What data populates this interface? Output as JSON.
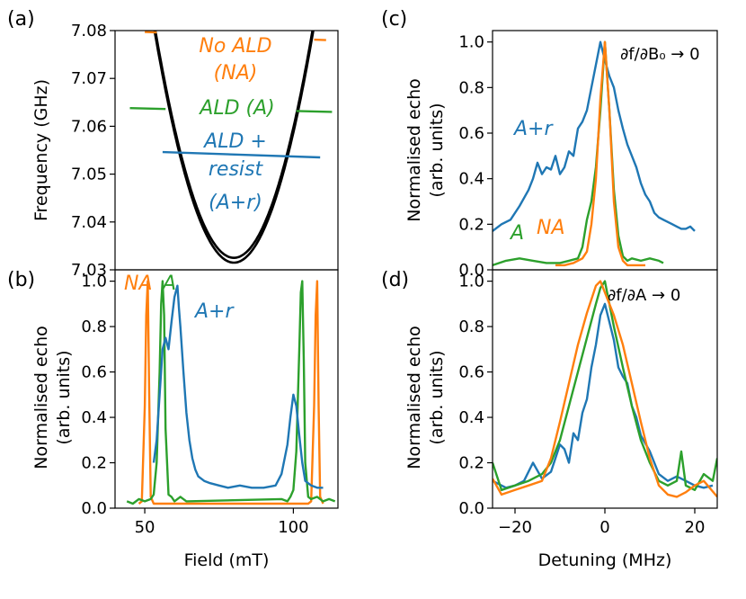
{
  "colors": {
    "NA": "#ff7f0e",
    "A": "#2ca02c",
    "Ar": "#1f77b4",
    "parabola": "#000000"
  },
  "chart_data": [
    {
      "panel": "(a)",
      "type": "line",
      "ylabel": "Frequency (GHz)",
      "xlim": [
        40,
        115
      ],
      "ylim": [
        7.03,
        7.08
      ],
      "yticks": [
        "7.03",
        "7.04",
        "7.05",
        "7.06",
        "7.07",
        "7.08"
      ],
      "parabola": {
        "vertex_x": 80,
        "vertex_y": [
          7.0315,
          7.0325
        ],
        "curvature": 6.8e-05
      },
      "series": [
        {
          "name": "No ALD (NA)",
          "key": "NA",
          "segments": [
            {
              "x": [
                50,
                54
              ],
              "y": [
                7.0797,
                7.0796
              ]
            },
            {
              "x": [
                107,
                111
              ],
              "y": [
                7.0781,
                7.078
              ]
            }
          ]
        },
        {
          "name": "ALD (A)",
          "key": "A",
          "segments": [
            {
              "x": [
                45,
                57
              ],
              "y": [
                7.0638,
                7.0636
              ]
            },
            {
              "x": [
                101,
                113
              ],
              "y": [
                7.0632,
                7.063
              ]
            }
          ]
        },
        {
          "name": "ALD + resist (A+r)",
          "key": "Ar",
          "segments": [
            {
              "x": [
                56,
                109
              ],
              "y": [
                7.0546,
                7.0535
              ]
            }
          ]
        }
      ],
      "annotations": {
        "NA_line1": "No ALD",
        "NA_line2": "(NA)",
        "A": "ALD (A)",
        "Ar_line1": "ALD +",
        "Ar_line2": "resist",
        "Ar_line3": "(A+r)"
      }
    },
    {
      "panel": "(b)",
      "type": "line",
      "xlabel": "Field (mT)",
      "ylabel_line1": "Normalised echo",
      "ylabel_line2": "(arb. units)",
      "xlim": [
        40,
        115
      ],
      "ylim": [
        0,
        1.05
      ],
      "xticks": [
        "50",
        "100"
      ],
      "yticks": [
        "0.0",
        "0.2",
        "0.4",
        "0.6",
        "0.8",
        "1.0"
      ],
      "series": [
        {
          "name": "NA",
          "key": "NA",
          "x": [
            48,
            49,
            50,
            50.5,
            51,
            51.5,
            52,
            53,
            105,
            106,
            107,
            107.5,
            108,
            108.5,
            109,
            110
          ],
          "y": [
            0.02,
            0.03,
            0.45,
            0.85,
            1.0,
            0.5,
            0.05,
            0.02,
            0.02,
            0.03,
            0.45,
            0.85,
            1.0,
            0.45,
            0.05,
            0.02
          ]
        },
        {
          "name": "A",
          "key": "A",
          "x": [
            44,
            46,
            48,
            50,
            52,
            53,
            54,
            55,
            55.5,
            56,
            56.5,
            57,
            58,
            59,
            60,
            61,
            62,
            64,
            96,
            98,
            99,
            100,
            101,
            102,
            102.5,
            103,
            103.5,
            104,
            105,
            106,
            108,
            110,
            112,
            114
          ],
          "y": [
            0.03,
            0.02,
            0.04,
            0.03,
            0.04,
            0.06,
            0.2,
            0.6,
            0.9,
            1.0,
            0.85,
            0.35,
            0.06,
            0.05,
            0.03,
            0.04,
            0.05,
            0.03,
            0.04,
            0.03,
            0.05,
            0.08,
            0.25,
            0.7,
            0.95,
            1.0,
            0.65,
            0.2,
            0.05,
            0.04,
            0.05,
            0.03,
            0.04,
            0.03
          ]
        },
        {
          "name": "A+r",
          "key": "Ar",
          "x": [
            53,
            54,
            55,
            56,
            57,
            58,
            59,
            60,
            61,
            61.5,
            62,
            63,
            64,
            65,
            66,
            67,
            68,
            70,
            72,
            75,
            78,
            82,
            86,
            90,
            94,
            96,
            98,
            99,
            100,
            101,
            102,
            103,
            104,
            106,
            108,
            110
          ],
          "y": [
            0.2,
            0.3,
            0.5,
            0.7,
            0.75,
            0.7,
            0.82,
            0.93,
            0.98,
            0.88,
            0.8,
            0.6,
            0.42,
            0.3,
            0.22,
            0.17,
            0.14,
            0.12,
            0.11,
            0.1,
            0.09,
            0.1,
            0.09,
            0.09,
            0.1,
            0.15,
            0.28,
            0.4,
            0.5,
            0.45,
            0.32,
            0.2,
            0.12,
            0.1,
            0.09,
            0.09
          ]
        }
      ],
      "annotations": {
        "NA": "NA",
        "A": "A",
        "Ar": "A+r"
      }
    },
    {
      "panel": "(c)",
      "type": "line",
      "ylabel_line1": "Normalised echo",
      "ylabel_line2": "(arb. units)",
      "xlim": [
        -25,
        25
      ],
      "ylim": [
        0,
        1.05
      ],
      "yticks": [
        "0.0",
        "0.2",
        "0.4",
        "0.6",
        "0.8",
        "1.0"
      ],
      "series": [
        {
          "name": "A+r",
          "key": "Ar",
          "x": [
            -25,
            -23,
            -21,
            -19,
            -17,
            -16,
            -15,
            -14,
            -13,
            -12,
            -11,
            -10,
            -9,
            -8,
            -7,
            -6,
            -5,
            -4,
            -3,
            -2,
            -1,
            0,
            1,
            2,
            3,
            4,
            5,
            6,
            7,
            8,
            9,
            10,
            11,
            12,
            13,
            14,
            15,
            16,
            17,
            18,
            19,
            20
          ],
          "y": [
            0.17,
            0.2,
            0.22,
            0.28,
            0.35,
            0.4,
            0.47,
            0.42,
            0.45,
            0.44,
            0.5,
            0.42,
            0.45,
            0.52,
            0.5,
            0.62,
            0.65,
            0.7,
            0.8,
            0.9,
            1.0,
            0.92,
            0.85,
            0.8,
            0.7,
            0.62,
            0.55,
            0.5,
            0.45,
            0.38,
            0.33,
            0.3,
            0.25,
            0.23,
            0.22,
            0.21,
            0.2,
            0.19,
            0.18,
            0.18,
            0.19,
            0.17
          ]
        },
        {
          "name": "A",
          "key": "A",
          "x": [
            -25,
            -22,
            -19,
            -16,
            -13,
            -10,
            -8,
            -6,
            -5,
            -4,
            -3,
            -2,
            -1,
            0,
            1,
            2,
            3,
            4,
            5,
            6,
            8,
            10,
            12,
            13
          ],
          "y": [
            0.02,
            0.04,
            0.05,
            0.04,
            0.03,
            0.03,
            0.04,
            0.05,
            0.1,
            0.22,
            0.3,
            0.45,
            0.7,
            1.0,
            0.7,
            0.35,
            0.15,
            0.06,
            0.04,
            0.05,
            0.04,
            0.05,
            0.04,
            0.03
          ]
        },
        {
          "name": "NA",
          "key": "NA",
          "x": [
            -11,
            -9,
            -7,
            -5,
            -4,
            -3,
            -2,
            -1,
            0,
            1,
            2,
            3,
            4,
            5,
            7,
            9
          ],
          "y": [
            0.02,
            0.02,
            0.03,
            0.05,
            0.08,
            0.2,
            0.4,
            0.75,
            1.0,
            0.7,
            0.3,
            0.1,
            0.04,
            0.02,
            0.02,
            0.02
          ]
        }
      ],
      "annotations": {
        "Ar": "A+r",
        "A": "A",
        "NA": "NA",
        "regime": "∂f/∂B₀ → 0"
      }
    },
    {
      "panel": "(d)",
      "type": "line",
      "xlabel": "Detuning (MHz)",
      "ylabel_line1": "Normalised echo",
      "ylabel_line2": "(arb. units)",
      "xlim": [
        -25,
        25
      ],
      "ylim": [
        0,
        1.05
      ],
      "xticks": [
        "−20",
        "0",
        "20"
      ],
      "yticks": [
        "0.0",
        "0.2",
        "0.4",
        "0.6",
        "0.8",
        "1.0"
      ],
      "series": [
        {
          "name": "A+r",
          "key": "Ar",
          "x": [
            -25,
            -22,
            -20,
            -18,
            -16,
            -14,
            -12,
            -10,
            -9,
            -8,
            -7,
            -6,
            -5,
            -4,
            -3,
            -2,
            -1,
            0,
            1,
            2,
            3,
            4,
            5,
            6,
            7,
            8,
            10,
            12,
            14,
            16,
            18,
            20,
            22,
            24
          ],
          "y": [
            0.12,
            0.09,
            0.1,
            0.12,
            0.2,
            0.13,
            0.16,
            0.28,
            0.26,
            0.2,
            0.33,
            0.3,
            0.42,
            0.48,
            0.62,
            0.72,
            0.85,
            0.9,
            0.82,
            0.74,
            0.62,
            0.58,
            0.55,
            0.45,
            0.4,
            0.32,
            0.25,
            0.15,
            0.12,
            0.14,
            0.12,
            0.1,
            0.09,
            0.1
          ]
        },
        {
          "name": "A",
          "key": "A",
          "x": [
            -25,
            -23,
            -20,
            -17,
            -14,
            -12,
            -10,
            -8,
            -6,
            -4,
            -2,
            -1,
            0,
            1,
            2,
            4,
            6,
            8,
            10,
            12,
            14,
            16,
            17,
            18,
            20,
            22,
            24,
            25
          ],
          "y": [
            0.2,
            0.08,
            0.1,
            0.12,
            0.15,
            0.2,
            0.3,
            0.45,
            0.6,
            0.75,
            0.9,
            0.97,
            1.0,
            0.9,
            0.8,
            0.62,
            0.45,
            0.3,
            0.2,
            0.12,
            0.1,
            0.12,
            0.25,
            0.1,
            0.08,
            0.15,
            0.12,
            0.22
          ]
        },
        {
          "name": "NA",
          "key": "NA",
          "x": [
            -25,
            -23,
            -20,
            -17,
            -14,
            -12,
            -10,
            -8,
            -6,
            -4,
            -2,
            -1,
            0,
            2,
            4,
            6,
            8,
            10,
            12,
            14,
            16,
            18,
            20,
            22,
            25
          ],
          "y": [
            0.13,
            0.06,
            0.08,
            0.1,
            0.12,
            0.22,
            0.38,
            0.55,
            0.72,
            0.86,
            0.98,
            1.0,
            0.95,
            0.85,
            0.72,
            0.55,
            0.38,
            0.22,
            0.1,
            0.06,
            0.05,
            0.07,
            0.1,
            0.12,
            0.05
          ]
        }
      ],
      "annotations": {
        "regime": "∂f/∂A → 0"
      }
    }
  ]
}
